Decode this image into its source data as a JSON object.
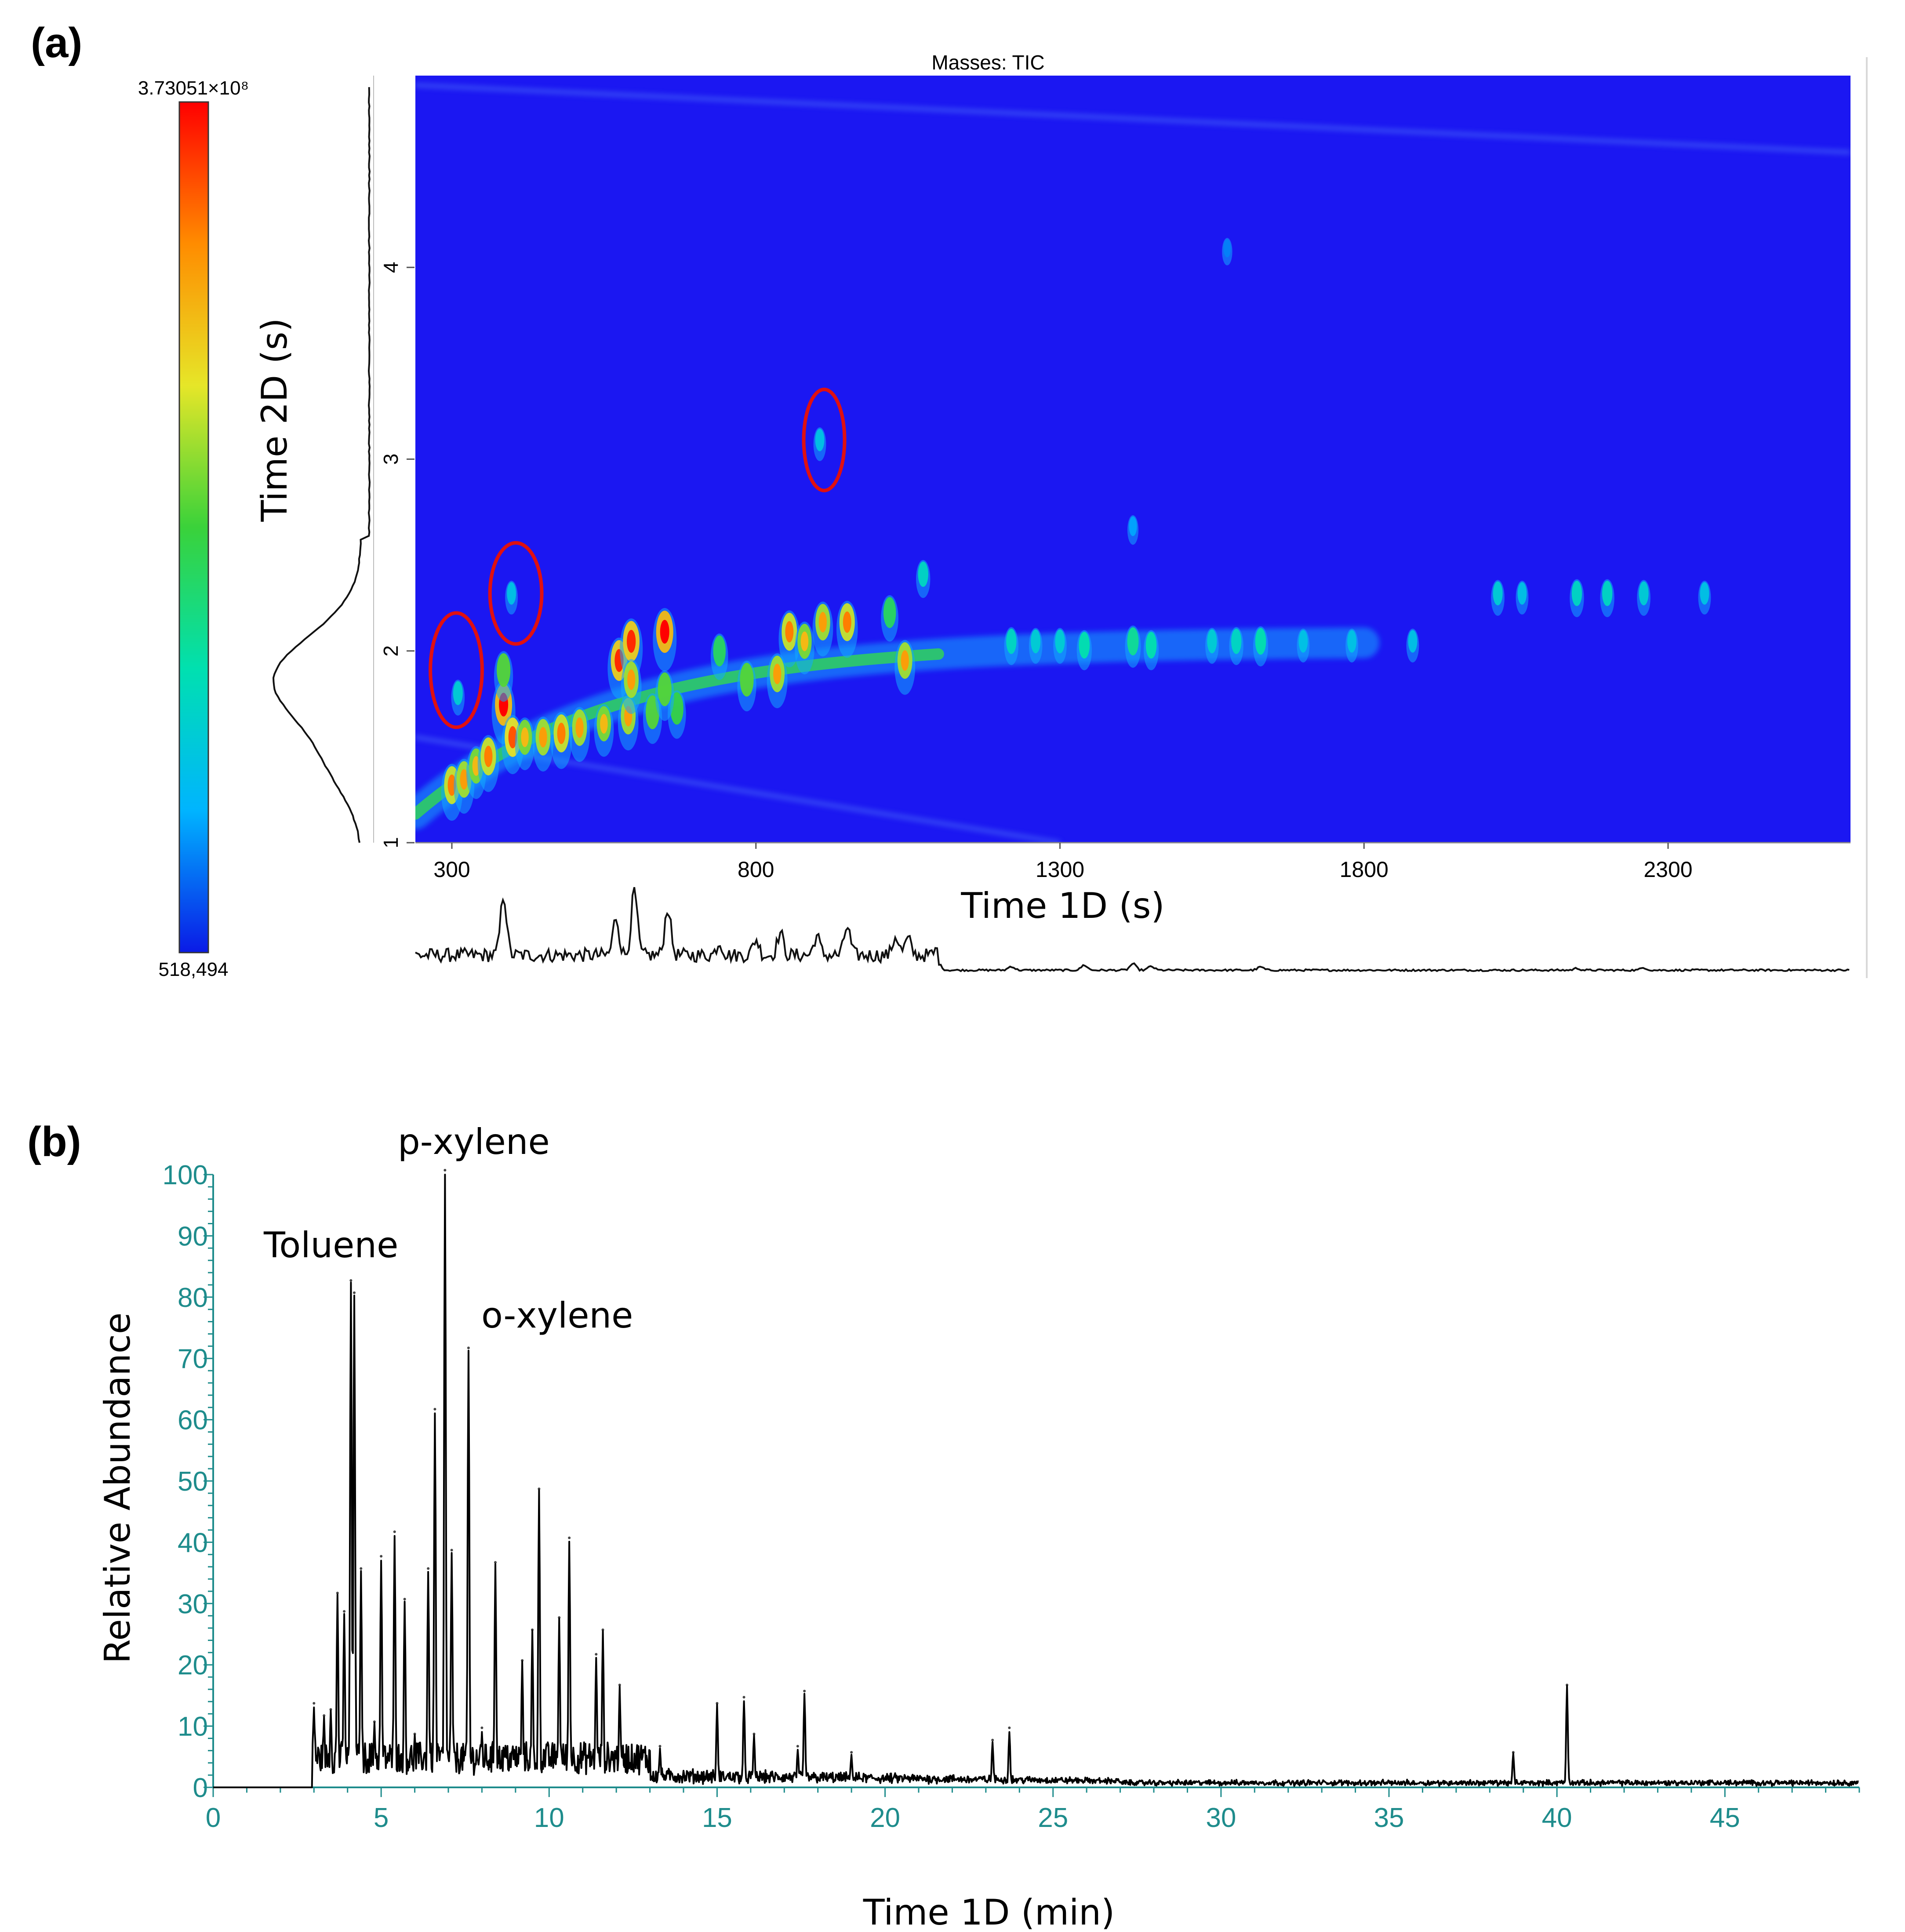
{
  "panel_a": {
    "label": "(a)",
    "title": "Masses:  TIC",
    "colorbar_max": "3.73051×10⁸",
    "colorbar_min": "518,494",
    "colormap": [
      "#0a1ae6",
      "#00b4ff",
      "#00e0b0",
      "#3ad23a",
      "#e6e628",
      "#ff8c00",
      "#ff0000"
    ],
    "plot_background": "#1b17f2",
    "circle_color": "#e01010"
  },
  "panel_b": {
    "label": "(b)",
    "axis_color": "#1e8c8c",
    "annotations": [
      {
        "text": "Toluene",
        "x_min": 4.1
      },
      {
        "text": "p-xylene",
        "x_min": 6.9
      },
      {
        "text": "o-xylene",
        "x_min": 7.6
      }
    ]
  },
  "chart_data": [
    {
      "type": "heatmap",
      "title": "Masses:  TIC",
      "xlabel": "Time 1D (s)",
      "ylabel": "Time 2D (s)",
      "xlim": [
        240,
        2600
      ],
      "ylim": [
        1,
        5
      ],
      "x_ticks": [
        300,
        800,
        1300,
        1800,
        2300
      ],
      "y_ticks": [
        1,
        2,
        3,
        4
      ],
      "colorbar_range": [
        518494,
        373051000
      ],
      "peaks": [
        {
          "x": 300,
          "y": 1.3,
          "i": 0.85
        },
        {
          "x": 320,
          "y": 1.33,
          "i": 0.8
        },
        {
          "x": 340,
          "y": 1.4,
          "i": 0.75
        },
        {
          "x": 360,
          "y": 1.45,
          "i": 0.85
        },
        {
          "x": 385,
          "y": 1.72,
          "i": 1.0
        },
        {
          "x": 385,
          "y": 1.9,
          "i": 0.7
        },
        {
          "x": 400,
          "y": 1.55,
          "i": 0.9
        },
        {
          "x": 420,
          "y": 1.55,
          "i": 0.75
        },
        {
          "x": 450,
          "y": 1.55,
          "i": 0.8
        },
        {
          "x": 480,
          "y": 1.57,
          "i": 0.85
        },
        {
          "x": 510,
          "y": 1.6,
          "i": 0.8
        },
        {
          "x": 550,
          "y": 1.62,
          "i": 0.75
        },
        {
          "x": 590,
          "y": 1.66,
          "i": 0.8
        },
        {
          "x": 630,
          "y": 1.68,
          "i": 0.7
        },
        {
          "x": 670,
          "y": 1.7,
          "i": 0.65
        },
        {
          "x": 575,
          "y": 1.95,
          "i": 0.95
        },
        {
          "x": 595,
          "y": 2.05,
          "i": 0.95
        },
        {
          "x": 595,
          "y": 1.85,
          "i": 0.8
        },
        {
          "x": 650,
          "y": 2.1,
          "i": 1.0
        },
        {
          "x": 650,
          "y": 1.8,
          "i": 0.7
        },
        {
          "x": 740,
          "y": 2.0,
          "i": 0.6
        },
        {
          "x": 785,
          "y": 1.85,
          "i": 0.7
        },
        {
          "x": 835,
          "y": 1.88,
          "i": 0.8
        },
        {
          "x": 855,
          "y": 2.1,
          "i": 0.85
        },
        {
          "x": 880,
          "y": 2.05,
          "i": 0.75
        },
        {
          "x": 910,
          "y": 2.15,
          "i": 0.8
        },
        {
          "x": 950,
          "y": 2.15,
          "i": 0.85
        },
        {
          "x": 1020,
          "y": 2.2,
          "i": 0.6
        },
        {
          "x": 1045,
          "y": 1.95,
          "i": 0.8
        },
        {
          "x": 1075,
          "y": 2.4,
          "i": 0.4
        },
        {
          "x": 905,
          "y": 3.1,
          "i": 0.3
        },
        {
          "x": 310,
          "y": 1.78,
          "i": 0.35
        },
        {
          "x": 398,
          "y": 2.3,
          "i": 0.3
        },
        {
          "x": 1220,
          "y": 2.05,
          "i": 0.4
        },
        {
          "x": 1260,
          "y": 2.05,
          "i": 0.35
        },
        {
          "x": 1300,
          "y": 2.05,
          "i": 0.35
        },
        {
          "x": 1340,
          "y": 2.03,
          "i": 0.45
        },
        {
          "x": 1420,
          "y": 2.05,
          "i": 0.5
        },
        {
          "x": 1450,
          "y": 2.03,
          "i": 0.45
        },
        {
          "x": 1550,
          "y": 2.05,
          "i": 0.35
        },
        {
          "x": 1590,
          "y": 2.05,
          "i": 0.4
        },
        {
          "x": 1630,
          "y": 2.05,
          "i": 0.45
        },
        {
          "x": 1700,
          "y": 2.05,
          "i": 0.3
        },
        {
          "x": 1780,
          "y": 2.05,
          "i": 0.3
        },
        {
          "x": 1880,
          "y": 2.05,
          "i": 0.3
        },
        {
          "x": 2020,
          "y": 2.3,
          "i": 0.35
        },
        {
          "x": 2060,
          "y": 2.3,
          "i": 0.3
        },
        {
          "x": 2150,
          "y": 2.3,
          "i": 0.4
        },
        {
          "x": 2200,
          "y": 2.3,
          "i": 0.4
        },
        {
          "x": 2260,
          "y": 2.3,
          "i": 0.35
        },
        {
          "x": 2360,
          "y": 2.3,
          "i": 0.3
        },
        {
          "x": 1575,
          "y": 4.1,
          "i": 0.15
        },
        {
          "x": 1420,
          "y": 2.65,
          "i": 0.2
        }
      ],
      "circled_regions": [
        {
          "x": 300,
          "y": 1.9
        },
        {
          "x": 398,
          "y": 2.3
        },
        {
          "x": 905,
          "y": 3.1
        }
      ],
      "side_trace_2d": "projected TIC profile along Time 2D with maximum near 1.85 s",
      "bottom_trace_1d": "projected TIC along Time 1D with major peaks near 380, 570, 595, 650 s"
    },
    {
      "type": "line",
      "xlabel": "Time 1D (min)",
      "ylabel": "Relative Abundance",
      "xlim": [
        0,
        49
      ],
      "ylim": [
        0,
        100
      ],
      "x_ticks": [
        0,
        5,
        10,
        15,
        20,
        25,
        30,
        35,
        40,
        45
      ],
      "y_ticks": [
        0,
        10,
        20,
        30,
        40,
        50,
        60,
        70,
        80,
        90,
        100
      ],
      "peaks": [
        {
          "x": 3.0,
          "y": 13
        },
        {
          "x": 3.3,
          "y": 11
        },
        {
          "x": 3.5,
          "y": 12
        },
        {
          "x": 3.7,
          "y": 31
        },
        {
          "x": 3.9,
          "y": 28
        },
        {
          "x": 4.1,
          "y": 82
        },
        {
          "x": 4.2,
          "y": 80
        },
        {
          "x": 4.4,
          "y": 35
        },
        {
          "x": 4.8,
          "y": 10
        },
        {
          "x": 5.0,
          "y": 37
        },
        {
          "x": 5.4,
          "y": 41
        },
        {
          "x": 5.7,
          "y": 30
        },
        {
          "x": 6.0,
          "y": 8
        },
        {
          "x": 6.4,
          "y": 35
        },
        {
          "x": 6.6,
          "y": 61
        },
        {
          "x": 6.9,
          "y": 100
        },
        {
          "x": 7.1,
          "y": 38
        },
        {
          "x": 7.6,
          "y": 71
        },
        {
          "x": 8.0,
          "y": 9
        },
        {
          "x": 8.4,
          "y": 36
        },
        {
          "x": 9.2,
          "y": 20
        },
        {
          "x": 9.5,
          "y": 25
        },
        {
          "x": 9.7,
          "y": 48
        },
        {
          "x": 10.3,
          "y": 27
        },
        {
          "x": 10.6,
          "y": 40
        },
        {
          "x": 11.4,
          "y": 21
        },
        {
          "x": 11.6,
          "y": 25
        },
        {
          "x": 12.1,
          "y": 16
        },
        {
          "x": 13.3,
          "y": 6
        },
        {
          "x": 15.0,
          "y": 13
        },
        {
          "x": 15.8,
          "y": 14
        },
        {
          "x": 16.1,
          "y": 8
        },
        {
          "x": 17.4,
          "y": 6
        },
        {
          "x": 17.6,
          "y": 15
        },
        {
          "x": 19.0,
          "y": 5
        },
        {
          "x": 23.2,
          "y": 7
        },
        {
          "x": 23.7,
          "y": 9
        },
        {
          "x": 38.7,
          "y": 5
        },
        {
          "x": 40.3,
          "y": 16
        }
      ]
    }
  ]
}
